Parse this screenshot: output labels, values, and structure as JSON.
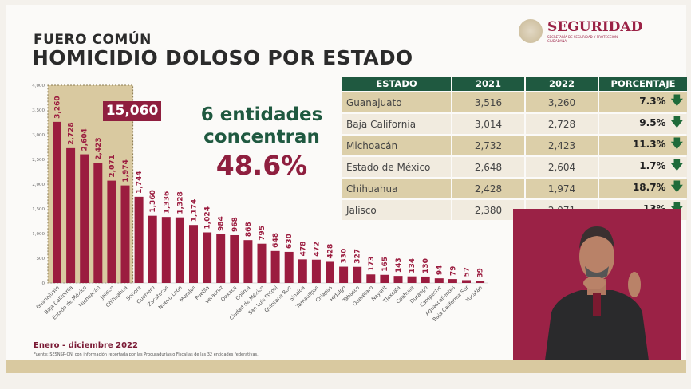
{
  "header": {
    "subtitle": "FUERO COMÚN",
    "title": "HOMICIDIO DOLOSO POR ESTADO"
  },
  "logo": {
    "name": "SEGURIDAD",
    "tagline": "SECRETARÍA DE SEGURIDAD Y PROTECCIÓN CIUDADANA"
  },
  "highlight": {
    "total": "15,060",
    "claim_line1": "6 entidades",
    "claim_line2": "concentran",
    "percent": "48.6%"
  },
  "table": {
    "headers": [
      "ESTADO",
      "2021",
      "2022",
      "PORCENTAJE"
    ],
    "rows": [
      {
        "estado": "Guanajuato",
        "y2021": "3,516",
        "y2022": "3,260",
        "pct": "7.3%",
        "trend": "down-arrow-icon"
      },
      {
        "estado": "Baja California",
        "y2021": "3,014",
        "y2022": "2,728",
        "pct": "9.5%",
        "trend": "down-arrow-icon"
      },
      {
        "estado": "Michoacán",
        "y2021": "2,732",
        "y2022": "2,423",
        "pct": "11.3%",
        "trend": "down-arrow-icon"
      },
      {
        "estado": "Estado de México",
        "y2021": "2,648",
        "y2022": "2,604",
        "pct": "1.7%",
        "trend": "down-arrow-icon"
      },
      {
        "estado": "Chihuahua",
        "y2021": "2,428",
        "y2022": "1,974",
        "pct": "18.7%",
        "trend": "down-arrow-icon"
      },
      {
        "estado": "Jalisco",
        "y2021": "2,380",
        "y2022": "2,071",
        "pct": "13%",
        "trend": "down-arrow-icon"
      }
    ]
  },
  "footer": {
    "period": "Enero - diciembre 2022",
    "source": "Fuente: SESNSP-CNI con información reportada por las Procuradurías o Fiscalías de las 32 entidades federativas."
  },
  "colors": {
    "bar": "#9b1c3f",
    "header_green": "#1f5940",
    "highlight_bg": "#d9c9a0"
  },
  "chart_data": {
    "type": "bar",
    "categories": [
      "Guanajuato",
      "Baja California",
      "Estado de México",
      "Michoacán",
      "Jalisco",
      "Chihuahua",
      "Sonora",
      "Guerrero",
      "Zacatecas",
      "Nuevo León",
      "Morelos",
      "Puebla",
      "Veracruz",
      "Oaxaca",
      "Colima",
      "Ciudad de México",
      "San Luis Potosí",
      "Quintana Roo",
      "Sinaloa",
      "Tamaulipas",
      "Chiapas",
      "Hidalgo",
      "Tabasco",
      "Querétaro",
      "Nayarit",
      "Tlaxcala",
      "Coahuila",
      "Durango",
      "Campeche",
      "Aguascalientes",
      "Baja California Sur",
      "Yucatán"
    ],
    "values": [
      3260,
      2728,
      2604,
      2423,
      2071,
      1974,
      1744,
      1360,
      1336,
      1328,
      1174,
      1024,
      984,
      968,
      868,
      795,
      648,
      630,
      478,
      472,
      428,
      330,
      327,
      173,
      165,
      143,
      134,
      130,
      94,
      79,
      57,
      39
    ],
    "yticks": [
      0,
      500,
      1000,
      1500,
      2000,
      2500,
      3000,
      3500,
      4000
    ],
    "ylim": [
      0,
      4000
    ],
    "highlighted_count": 6,
    "grid": false
  }
}
